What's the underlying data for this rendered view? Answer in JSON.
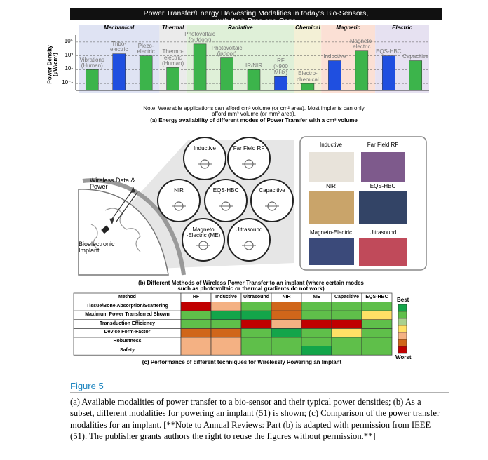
{
  "chart_data": {
    "type": "bar",
    "log_scale": true,
    "grid": true,
    "title": "Power Transfer/Energy Harvesting Modalities in today's Bio-Sensors, with their Pros and Cons",
    "ylabel": "Power Density\n(µW/cm²)",
    "ylim": [
      0.01,
      1000000
    ],
    "yticks": [
      {
        "value": 0.1,
        "label": "10⁻¹"
      },
      {
        "value": 10,
        "label": "10¹"
      },
      {
        "value": 1000,
        "label": "10³"
      },
      {
        "value": 100000,
        "label": "10⁵"
      }
    ],
    "groups": [
      {
        "name": "Mechanical",
        "color": "#dfe3f3",
        "count": 3
      },
      {
        "name": "Thermal",
        "color": "#ebebeb",
        "count": 1
      },
      {
        "name": "Radiative",
        "color": "#dff0d8",
        "count": 4
      },
      {
        "name": "Chemical",
        "color": "#f3f0d6",
        "count": 1
      },
      {
        "name": "Magnetic",
        "color": "#fbe0d5",
        "count": 2
      },
      {
        "name": "Electric",
        "color": "#e6e1f1",
        "count": 2
      }
    ],
    "categories": [
      "Vibrations\n(Human)",
      "Tribo-\nelectric",
      "Piezo-\nelectric",
      "Thermo-\nelectric\n(Human)",
      "Photovoltaic\n(outdoor)",
      "Photovoltaic\n(indoor)",
      "IR/NIR",
      "RF\n(~900\nMHz)",
      "Electro-\nchemical",
      "Inductive",
      "Magneto-\nelectric",
      "EQS-HBC",
      "Capacitive"
    ],
    "values": [
      10,
      2000,
      1000,
      20,
      50000,
      500,
      10,
      1,
      0.1,
      200,
      5000,
      1000,
      200
    ],
    "colors": [
      "#3cb44b",
      "#1f4fe0",
      "#3cb44b",
      "#3cb44b",
      "#3cb44b",
      "#3cb44b",
      "#3cb44b",
      "#1f4fe0",
      "#3cb44b",
      "#1f4fe0",
      "#3cb44b",
      "#1f4fe0",
      "#3cb44b"
    ],
    "note": "Note: Wearable applications can afford cm³ volume (or cm² area). Most implants can only afford mm³ volume (or mm² area).",
    "caption": "(a) Energy availability of different modes of Power Transfer with a cm³ volume"
  },
  "panel_b": {
    "wireless": "Wireless Data &\nPower",
    "implant": "Bioelectronic\nImplant",
    "modes": [
      "Inductive",
      "Far Field RF",
      "NIR",
      "EQS-HBC",
      "Capacitive",
      "Magneto\n-Electric (ME)",
      "Ultrasound"
    ],
    "photos": [
      "Inductive",
      "Far Field RF",
      "NIR",
      "EQS-HBC",
      "Magneto-Electric",
      "Ultrasound"
    ],
    "caption": "(b) Different Methods of Wireless Power Transfer to an implant (where certain modes such as photovoltaic or thermal gradients do not work)"
  },
  "panel_c": {
    "header": [
      "Method",
      "RF",
      "Inductive",
      "Ultrasound",
      "NIR",
      "ME",
      "Capacitive",
      "EQS-HBC"
    ],
    "rows": [
      {
        "label": "Tissue/Bone Absorption/Scattering",
        "colors": [
          "#c00000",
          "#f4b183",
          "#5fbf4a",
          "#d0661a",
          "#5fbf4a",
          "#5fbf4a",
          "#5fbf4a"
        ]
      },
      {
        "label": "Maximum Power Transferred Shown",
        "colors": [
          "#5fbf4a",
          "#13a54a",
          "#13a54a",
          "#d0661a",
          "#5fbf4a",
          "#5fbf4a",
          "#ffe066"
        ]
      },
      {
        "label": "Transduction Efficiency",
        "colors": [
          "#5fbf4a",
          "#5fbf4a",
          "#c00000",
          "#f4b183",
          "#c00000",
          "#c00000",
          "#5fbf4a"
        ]
      },
      {
        "label": "Device Form-Factor",
        "colors": [
          "#d0661a",
          "#d0661a",
          "#5fbf4a",
          "#13a54a",
          "#5fbf4a",
          "#ffe066",
          "#5fbf4a"
        ]
      },
      {
        "label": "Robustness",
        "colors": [
          "#f4b183",
          "#f4b183",
          "#5fbf4a",
          "#5fbf4a",
          "#5fbf4a",
          "#5fbf4a",
          "#5fbf4a"
        ]
      },
      {
        "label": "Safety",
        "colors": [
          "#f4b183",
          "#f4b183",
          "#5fbf4a",
          "#5fbf4a",
          "#13a54a",
          "#5fbf4a",
          "#5fbf4a"
        ]
      }
    ],
    "legend": {
      "best": "Best",
      "worst": "Worst",
      "colors": [
        "#13a54a",
        "#5fbf4a",
        "#a9d18e",
        "#ffe066",
        "#f4b183",
        "#d0661a",
        "#c00000"
      ]
    },
    "caption": "(c) Performance of different techniques for Wirelessly Powering an Implant"
  },
  "figure": {
    "label": "Figure 5",
    "caption": "(a) Available modalities of power transfer to a bio-sensor and their typical power densities; (b) As a subset, different modalities for powering an implant (51) is shown; (c) Comparison of the power transfer modalities for an implant. [**Note to Annual Reviews: Part (b) is adapted with permission from IEEE (51). The publisher grants authors the right to reuse the figures without permission.**]"
  }
}
